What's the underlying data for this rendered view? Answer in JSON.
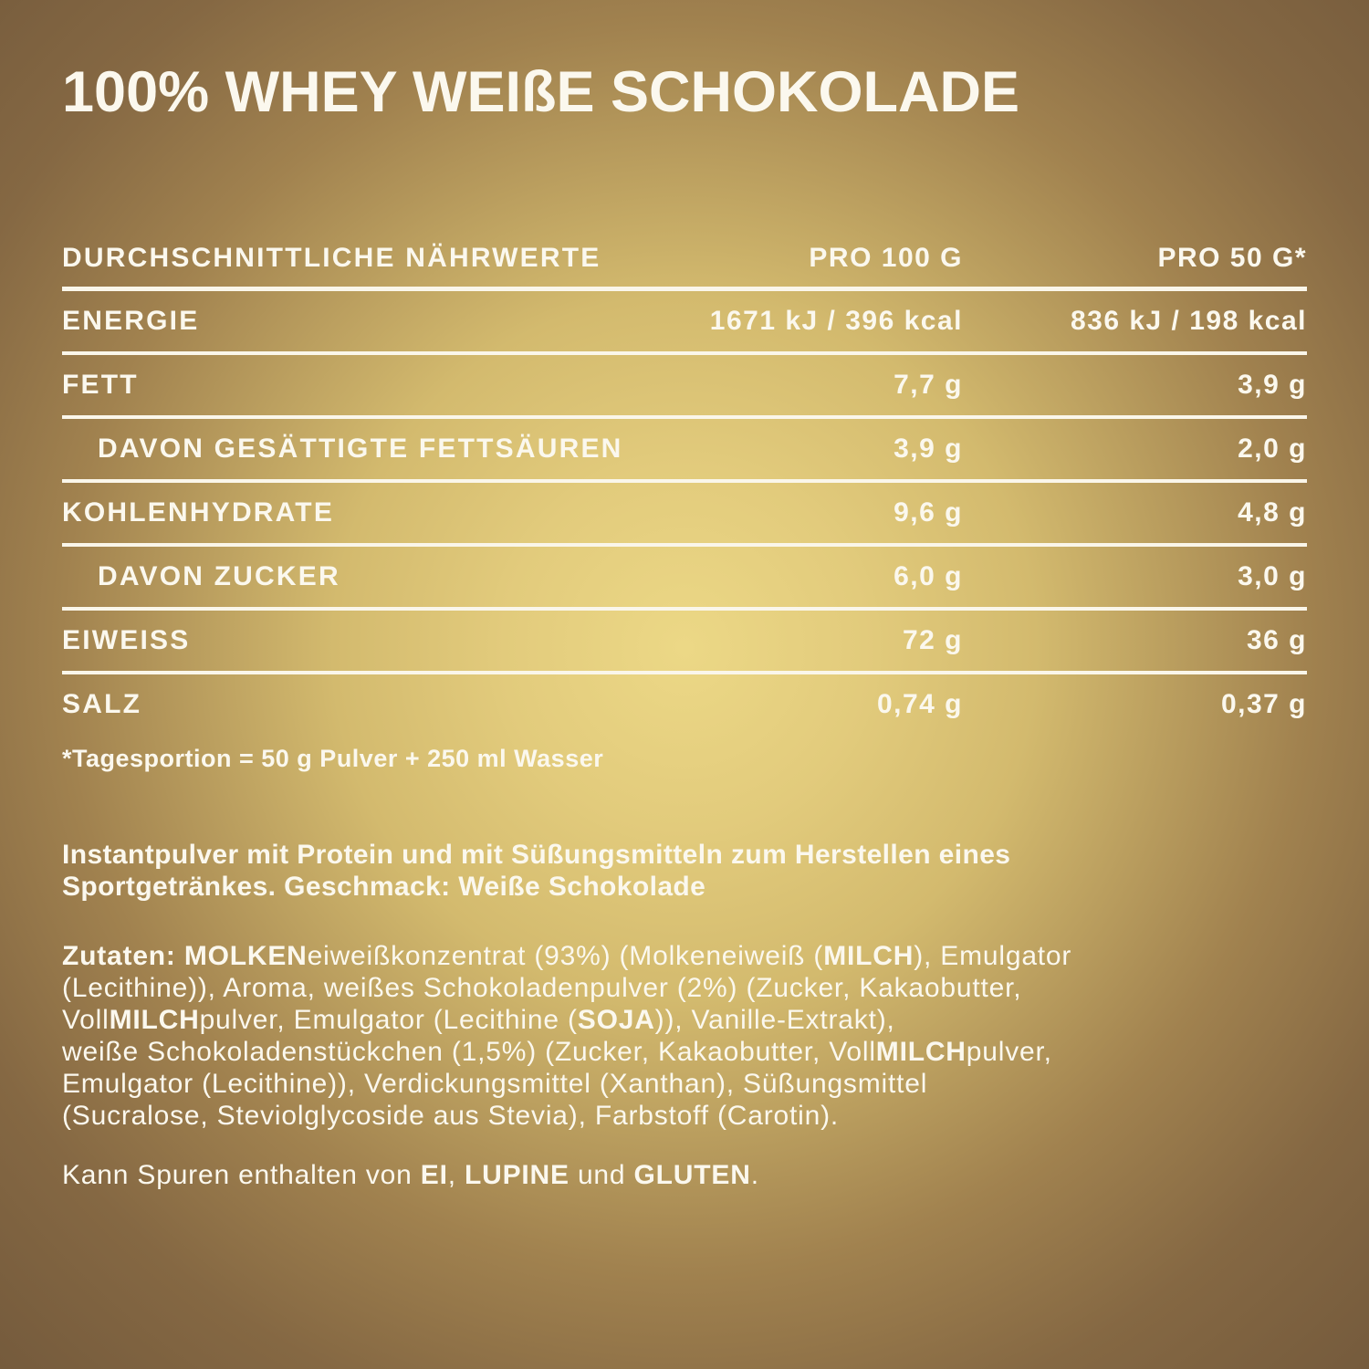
{
  "title": "100% WHEY WEIßE SCHOKOLADE",
  "table": {
    "col_nutrients": "DURCHSCHNITTLICHE NÄHRWERTE",
    "col_per100": "PRO 100 G",
    "col_per50": "PRO 50 G*",
    "rows": [
      {
        "label": "ENERGIE",
        "per100": "1671 kJ / 396 kcal",
        "per50": "836 kJ / 198 kcal",
        "indent": false
      },
      {
        "label": "FETT",
        "per100": "7,7 g",
        "per50": "3,9 g",
        "indent": false
      },
      {
        "label": "DAVON GESÄTTIGTE FETTSÄUREN",
        "per100": "3,9 g",
        "per50": "2,0 g",
        "indent": true
      },
      {
        "label": "KOHLENHYDRATE",
        "per100": "9,6 g",
        "per50": "4,8 g",
        "indent": false
      },
      {
        "label": "DAVON ZUCKER",
        "per100": "6,0 g",
        "per50": "3,0 g",
        "indent": true
      },
      {
        "label": "EIWEISS",
        "per100": "72 g",
        "per50": "36 g",
        "indent": false
      },
      {
        "label": "SALZ",
        "per100": "0,74 g",
        "per50": "0,37 g",
        "indent": false
      }
    ],
    "footnote": "*Tagesportion = 50 g Pulver + 250 ml Wasser"
  },
  "description_segments": [
    {
      "t": "Instantpulver mit Protein und mit Süßungsmitteln zum Herstellen eines\nSportgetränkes. Geschmack: Weiße Schokolade",
      "b": true
    }
  ],
  "ingredients_segments": [
    {
      "t": "Zutaten: MOLKEN",
      "b": true
    },
    {
      "t": "eiweißkonzentrat (93%) (Molkeneiweiß (",
      "b": false
    },
    {
      "t": "MILCH",
      "b": true
    },
    {
      "t": "), Emulgator\n(Lecithine)), Aroma, weißes Schokoladenpulver (2%) (Zucker, Kakaobutter,\nVoll",
      "b": false
    },
    {
      "t": "MILCH",
      "b": true
    },
    {
      "t": "pulver, Emulgator (Lecithine (",
      "b": false
    },
    {
      "t": "SOJA",
      "b": true
    },
    {
      "t": ")), Vanille-Extrakt),\nweiße Schokoladenstückchen (1,5%) (Zucker, Kakaobutter, Voll",
      "b": false
    },
    {
      "t": "MILCH",
      "b": true
    },
    {
      "t": "pulver,\nEmulgator (Lecithine)), Verdickungsmittel (Xanthan), Süßungsmittel\n(Sucralose, Steviolglycoside aus Stevia), Farbstoff (Carotin).",
      "b": false
    }
  ],
  "allergens_segments": [
    {
      "t": "Kann Spuren enthalten von ",
      "b": false
    },
    {
      "t": "EI",
      "b": true
    },
    {
      "t": ", ",
      "b": false
    },
    {
      "t": "LUPINE",
      "b": true
    },
    {
      "t": " und ",
      "b": false
    },
    {
      "t": "GLUTEN",
      "b": true
    },
    {
      "t": ".",
      "b": false
    }
  ],
  "colors": {
    "background_center": "#e9d584",
    "background_edge": "#745a3c",
    "text": "#fbf8ee",
    "rule": "#faf6ea"
  }
}
